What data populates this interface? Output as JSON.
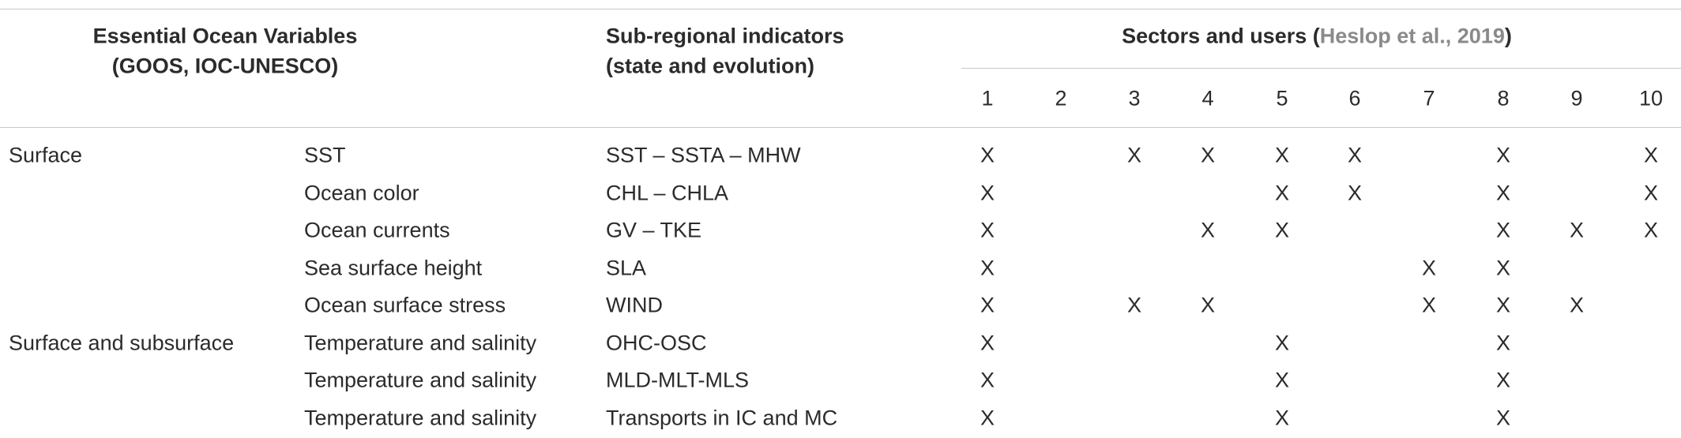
{
  "header": {
    "col1": [
      "Essential Ocean Variables",
      "(GOOS, IOC-UNESCO)"
    ],
    "col3": [
      "Sub-regional indicators",
      "(state and evolution)"
    ],
    "sectors_prefix": "Sectors and users (",
    "citation": "Heslop et al., 2019",
    "sectors_suffix": ")",
    "sectors": [
      "1",
      "2",
      "3",
      "4",
      "5",
      "6",
      "7",
      "8",
      "9",
      "10"
    ]
  },
  "table": {
    "rows": [
      {
        "group": "Surface",
        "variable": "SST",
        "indicator": "SST – SSTA – MHW",
        "marks": [
          "X",
          null,
          "X",
          "X",
          "X",
          "X",
          null,
          "X",
          null,
          "X"
        ]
      },
      {
        "group": null,
        "variable": "Ocean color",
        "indicator": "CHL – CHLA",
        "marks": [
          "X",
          null,
          null,
          null,
          "X",
          "X",
          null,
          "X",
          null,
          "X"
        ]
      },
      {
        "group": null,
        "variable": "Ocean currents",
        "indicator": "GV – TKE",
        "marks": [
          "X",
          null,
          null,
          "X",
          "X",
          null,
          null,
          "X",
          "X",
          "X"
        ]
      },
      {
        "group": null,
        "variable": "Sea surface height",
        "indicator": "SLA",
        "marks": [
          "X",
          null,
          null,
          null,
          null,
          null,
          "X",
          "X",
          null,
          null
        ]
      },
      {
        "group": null,
        "variable": "Ocean surface stress",
        "indicator": "WIND",
        "marks": [
          "X",
          null,
          "X",
          "X",
          null,
          null,
          "X",
          "X",
          "X",
          null
        ]
      },
      {
        "group": "Surface and subsurface",
        "variable": "Temperature and salinity",
        "indicator": "OHC-OSC",
        "marks": [
          "X",
          null,
          null,
          null,
          "X",
          null,
          null,
          "X",
          null,
          null
        ]
      },
      {
        "group": null,
        "variable": "Temperature and salinity",
        "indicator": "MLD-MLT-MLS",
        "marks": [
          "X",
          null,
          null,
          null,
          "X",
          null,
          null,
          "X",
          null,
          null
        ]
      },
      {
        "group": null,
        "variable": "Temperature and salinity",
        "indicator": "Transports in IC and MC",
        "marks": [
          "X",
          null,
          null,
          null,
          "X",
          null,
          null,
          "X",
          null,
          null
        ]
      }
    ]
  }
}
